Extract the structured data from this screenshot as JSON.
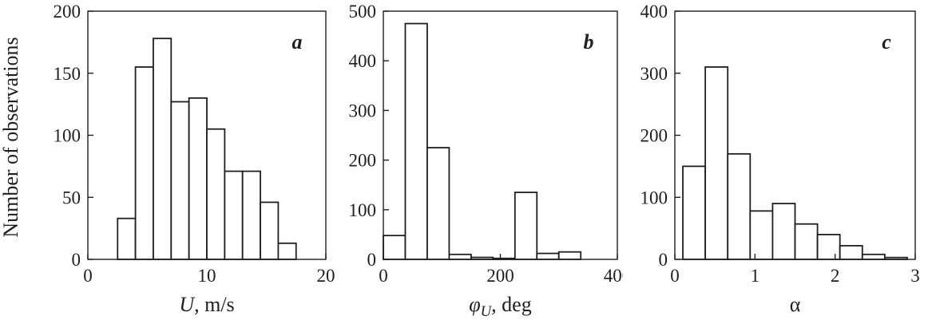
{
  "figure": {
    "ylabel": "Number of observations",
    "background": "#ffffff",
    "axis_color": "#1f1f1f",
    "bar_fill": "#ffffff",
    "bar_edge": "#1f1f1f"
  },
  "chart_data": [
    {
      "type": "bar",
      "panel_label": "a",
      "xlabel": "U, m/s",
      "xlabel_parts": {
        "symbol": "U",
        "symbol_italic": true,
        "subscript": "",
        "rest": ", m/s"
      },
      "ylabel": "Number of observations",
      "xlim": [
        0,
        20
      ],
      "ylim": [
        0,
        200
      ],
      "xticks": [
        0,
        10,
        20
      ],
      "yticks": [
        0,
        50,
        100,
        150,
        200
      ],
      "grid": false,
      "legend": null,
      "bin_edges": [
        2.5,
        4,
        5.5,
        7,
        8.5,
        10,
        11.5,
        13,
        14.5,
        16,
        17.5
      ],
      "values": [
        33,
        155,
        178,
        127,
        130,
        105,
        71,
        71,
        46,
        13
      ]
    },
    {
      "type": "bar",
      "panel_label": "b",
      "xlabel": "φU, deg",
      "xlabel_parts": {
        "symbol": "φ",
        "symbol_italic": true,
        "subscript": "U",
        "rest": ", deg"
      },
      "ylabel": "Number of observations",
      "xlim": [
        0,
        400
      ],
      "ylim": [
        0,
        500
      ],
      "xticks": [
        0,
        200,
        400
      ],
      "yticks": [
        0,
        100,
        200,
        300,
        400,
        500
      ],
      "grid": false,
      "legend": null,
      "bin_edges": [
        0,
        37.5,
        75,
        112.5,
        150,
        187.5,
        225,
        262.5,
        300,
        337.5
      ],
      "values": [
        48,
        475,
        225,
        10,
        4,
        2,
        135,
        12,
        15
      ]
    },
    {
      "type": "bar",
      "panel_label": "c",
      "xlabel": "α",
      "xlabel_parts": {
        "symbol": "α",
        "symbol_italic": false,
        "subscript": "",
        "rest": ""
      },
      "ylabel": "Number of observations",
      "xlim": [
        0,
        3
      ],
      "ylim": [
        0,
        400
      ],
      "xticks": [
        0,
        1,
        2,
        3
      ],
      "yticks": [
        0,
        100,
        200,
        300,
        400
      ],
      "grid": false,
      "legend": null,
      "bin_edges": [
        0.1,
        0.38,
        0.66,
        0.94,
        1.22,
        1.5,
        1.78,
        2.06,
        2.34,
        2.62,
        2.9
      ],
      "values": [
        150,
        310,
        170,
        78,
        90,
        57,
        40,
        22,
        8,
        3
      ]
    }
  ]
}
